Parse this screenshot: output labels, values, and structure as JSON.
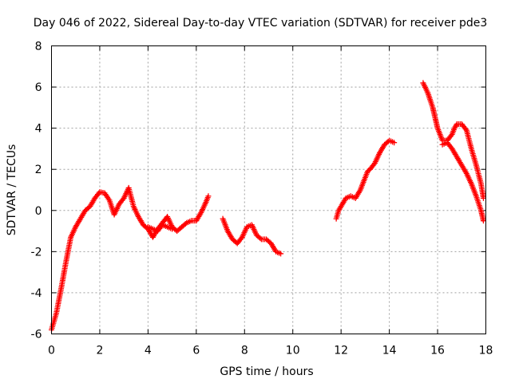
{
  "chart_data": {
    "type": "scatter",
    "title": "Day 046 of 2022, Sidereal Day-to-day VTEC variation (SDTVAR) for receiver pde3",
    "xlabel": "GPS time / hours",
    "ylabel": "SDTVAR / TECUs",
    "xlim": [
      0,
      18
    ],
    "ylim": [
      -6,
      8
    ],
    "x_ticks": [
      0,
      2,
      4,
      6,
      8,
      10,
      12,
      14,
      16,
      18
    ],
    "y_ticks": [
      -6,
      -4,
      -2,
      0,
      2,
      4,
      6,
      8
    ],
    "x_tick_labels": [
      "0",
      "2",
      "4",
      "6",
      "8",
      "10",
      "12",
      "14",
      "16",
      "18"
    ],
    "y_tick_labels": [
      "-6",
      "-4",
      "-2",
      "0",
      "2",
      "4",
      "6",
      "8"
    ],
    "grid": true,
    "marker": "plus",
    "color": "#ff0000",
    "series": [
      {
        "name": "segment-1",
        "x": [
          0.0,
          0.2,
          0.4,
          0.6,
          0.8,
          1.0,
          1.2,
          1.4,
          1.6,
          1.8,
          2.0,
          2.2,
          2.4,
          2.6,
          2.8,
          3.0,
          3.2,
          3.4,
          3.6,
          3.8,
          4.0,
          4.2,
          4.4,
          4.6,
          4.8,
          5.0,
          5.2,
          5.4,
          5.6,
          5.8,
          6.0,
          6.2,
          6.4,
          6.5
        ],
        "y": [
          -5.8,
          -5.0,
          -3.8,
          -2.5,
          -1.3,
          -0.8,
          -0.4,
          0.0,
          0.2,
          0.6,
          0.9,
          0.85,
          0.5,
          -0.2,
          0.3,
          0.6,
          1.1,
          0.2,
          -0.3,
          -0.7,
          -0.9,
          -1.3,
          -0.9,
          -0.6,
          -0.3,
          -0.8,
          -1.0,
          -0.8,
          -0.6,
          -0.5,
          -0.5,
          -0.1,
          0.4,
          0.7
        ]
      },
      {
        "name": "segment-1b",
        "x": [
          4.0,
          4.2,
          4.4,
          4.6,
          4.8,
          5.0
        ],
        "y": [
          -0.8,
          -0.9,
          -1.0,
          -0.7,
          -0.8,
          -0.9
        ]
      },
      {
        "name": "segment-2",
        "x": [
          7.1,
          7.3,
          7.5,
          7.7,
          7.9,
          8.1,
          8.3,
          8.5,
          8.7,
          8.9,
          9.1,
          9.3,
          9.5
        ],
        "y": [
          -0.4,
          -1.0,
          -1.4,
          -1.6,
          -1.3,
          -0.8,
          -0.7,
          -1.2,
          -1.4,
          -1.4,
          -1.6,
          -2.0,
          -2.1
        ]
      },
      {
        "name": "segment-3",
        "x": [
          11.8,
          11.9,
          12.0,
          12.2,
          12.4,
          12.6,
          12.8,
          13.0,
          13.1,
          13.2,
          13.4,
          13.6,
          13.8,
          14.0,
          14.2
        ],
        "y": [
          -0.4,
          0.0,
          0.2,
          0.6,
          0.7,
          0.6,
          1.0,
          1.6,
          1.9,
          2.0,
          2.3,
          2.8,
          3.2,
          3.4,
          3.3
        ]
      },
      {
        "name": "segment-4a",
        "x": [
          15.4,
          15.6,
          15.8,
          15.9,
          16.0,
          16.2,
          16.4,
          16.6,
          16.7,
          16.8,
          17.0,
          17.2,
          17.4,
          17.6,
          17.8,
          17.9
        ],
        "y": [
          6.2,
          5.7,
          5.0,
          4.5,
          4.0,
          3.4,
          3.4,
          3.7,
          4.0,
          4.2,
          4.2,
          3.9,
          3.0,
          2.2,
          1.3,
          0.6
        ]
      },
      {
        "name": "segment-4b",
        "x": [
          16.2,
          16.4,
          16.6,
          16.8,
          17.0,
          17.2,
          17.4,
          17.6,
          17.8,
          17.9
        ],
        "y": [
          3.2,
          3.3,
          3.0,
          2.6,
          2.2,
          1.8,
          1.3,
          0.7,
          0.0,
          -0.5
        ]
      }
    ]
  }
}
